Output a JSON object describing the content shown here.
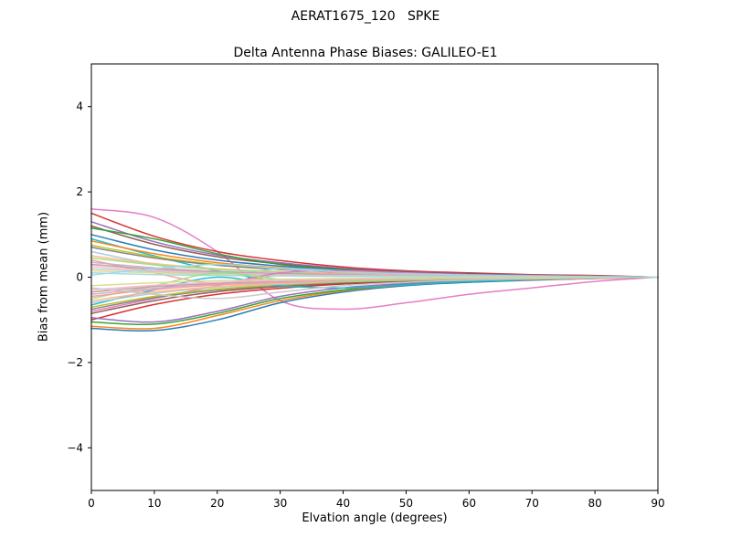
{
  "figure": {
    "suptitle": "AERAT1675_120   SPKE",
    "background": "#ffffff"
  },
  "chart_data": {
    "type": "line",
    "title": "Delta Antenna Phase Biases: GALILEO-E1",
    "xlabel": "Elvation angle (degrees)",
    "ylabel": "Bias from mean (mm)",
    "xlim": [
      0,
      90
    ],
    "ylim": [
      -5,
      5
    ],
    "x_ticks": [
      0,
      10,
      20,
      30,
      40,
      50,
      60,
      70,
      80,
      90
    ],
    "y_ticks": [
      -4,
      -2,
      0,
      2,
      4
    ],
    "grid": false,
    "legend": "none",
    "axis_color": "#000000",
    "x": [
      0,
      10,
      20,
      30,
      40,
      50,
      60,
      70,
      80,
      90
    ],
    "series": [
      {
        "color": "#e377c2",
        "values": [
          1.6,
          1.4,
          0.6,
          -0.55,
          -0.75,
          -0.6,
          -0.4,
          -0.25,
          -0.1,
          0.0
        ]
      },
      {
        "color": "#d62728",
        "values": [
          1.5,
          0.96,
          0.6,
          0.39,
          0.24,
          0.15,
          0.1,
          0.06,
          0.04,
          0.0
        ]
      },
      {
        "color": "#9467bd",
        "values": [
          1.3,
          0.83,
          0.52,
          0.34,
          0.21,
          0.13,
          0.08,
          0.05,
          0.03,
          0.0
        ]
      },
      {
        "color": "#8c564b",
        "values": [
          1.2,
          0.77,
          0.48,
          0.31,
          0.19,
          0.12,
          0.08,
          0.05,
          0.03,
          0.0
        ]
      },
      {
        "color": "#2ca02c",
        "values": [
          1.15,
          0.9,
          0.55,
          0.3,
          0.18,
          0.1,
          0.06,
          0.04,
          0.02,
          0.0
        ]
      },
      {
        "color": "#1f77b4",
        "values": [
          1.0,
          0.64,
          0.4,
          0.26,
          0.16,
          0.1,
          0.07,
          0.04,
          0.02,
          0.0
        ]
      },
      {
        "color": "#17becf",
        "values": [
          0.9,
          0.5,
          0.15,
          -0.1,
          -0.15,
          -0.1,
          -0.06,
          -0.04,
          -0.02,
          0.0
        ]
      },
      {
        "color": "#ff7f0e",
        "values": [
          0.85,
          0.55,
          0.34,
          0.22,
          0.14,
          0.09,
          0.06,
          0.03,
          0.02,
          0.0
        ]
      },
      {
        "color": "#bcbd22",
        "values": [
          0.75,
          0.48,
          0.3,
          0.2,
          0.12,
          0.08,
          0.05,
          0.03,
          0.02,
          0.0
        ]
      },
      {
        "color": "#7f7f7f",
        "values": [
          0.7,
          0.45,
          0.28,
          0.18,
          0.11,
          0.07,
          0.05,
          0.03,
          0.02,
          0.0
        ]
      },
      {
        "color": "#aec7e8",
        "values": [
          0.6,
          0.3,
          0.05,
          0.2,
          0.15,
          0.1,
          0.05,
          0.03,
          0.01,
          0.0
        ]
      },
      {
        "color": "#ffbb78",
        "values": [
          0.5,
          0.32,
          0.2,
          0.13,
          0.08,
          0.05,
          0.03,
          0.02,
          0.01,
          0.0
        ]
      },
      {
        "color": "#98df8a",
        "values": [
          0.45,
          0.29,
          0.18,
          0.12,
          0.07,
          0.05,
          0.03,
          0.02,
          0.01,
          0.0
        ]
      },
      {
        "color": "#ff9896",
        "values": [
          0.4,
          0.1,
          -0.15,
          0.05,
          0.1,
          0.08,
          0.05,
          0.03,
          0.01,
          0.0
        ]
      },
      {
        "color": "#c5b0d5",
        "values": [
          0.35,
          0.22,
          0.14,
          0.09,
          0.06,
          0.04,
          0.02,
          0.01,
          0.01,
          0.0
        ]
      },
      {
        "color": "#c49c94",
        "values": [
          0.3,
          0.19,
          0.12,
          0.08,
          0.05,
          0.03,
          0.02,
          0.01,
          0.01,
          0.0
        ]
      },
      {
        "color": "#f7b6d2",
        "values": [
          0.25,
          0.16,
          0.1,
          0.06,
          0.04,
          0.03,
          0.02,
          0.01,
          0.0,
          0.0
        ]
      },
      {
        "color": "#c7c7c7",
        "values": [
          0.2,
          0.13,
          0.08,
          0.05,
          0.03,
          0.02,
          0.01,
          0.01,
          0.0,
          0.0
        ]
      },
      {
        "color": "#dbdb8d",
        "values": [
          0.15,
          0.1,
          0.06,
          0.04,
          0.02,
          0.02,
          0.01,
          0.01,
          0.0,
          0.0
        ]
      },
      {
        "color": "#9edae5",
        "values": [
          0.1,
          0.06,
          0.04,
          0.03,
          0.02,
          0.01,
          0.01,
          0.0,
          0.0,
          0.0
        ]
      },
      {
        "color": "#1f77b4",
        "values": [
          -1.2,
          -1.25,
          -1.0,
          -0.6,
          -0.35,
          -0.2,
          -0.12,
          -0.07,
          -0.03,
          0.0
        ]
      },
      {
        "color": "#ff7f0e",
        "values": [
          -1.15,
          -1.2,
          -0.9,
          -0.55,
          -0.32,
          -0.18,
          -0.1,
          -0.06,
          -0.03,
          0.0
        ]
      },
      {
        "color": "#2ca02c",
        "values": [
          -1.05,
          -1.1,
          -0.85,
          -0.5,
          -0.3,
          -0.17,
          -0.1,
          -0.05,
          -0.02,
          0.0
        ]
      },
      {
        "color": "#d62728",
        "values": [
          -1.0,
          -0.64,
          -0.4,
          -0.26,
          -0.16,
          -0.1,
          -0.07,
          -0.04,
          -0.02,
          0.0
        ]
      },
      {
        "color": "#9467bd",
        "values": [
          -0.95,
          -1.05,
          -0.8,
          -0.45,
          -0.25,
          -0.15,
          -0.08,
          -0.05,
          -0.02,
          0.0
        ]
      },
      {
        "color": "#8c564b",
        "values": [
          -0.85,
          -0.55,
          -0.34,
          -0.22,
          -0.14,
          -0.08,
          -0.05,
          -0.03,
          -0.02,
          0.0
        ]
      },
      {
        "color": "#e377c2",
        "values": [
          -0.8,
          -0.5,
          -0.2,
          0.1,
          0.15,
          0.1,
          0.06,
          0.04,
          0.02,
          0.0
        ]
      },
      {
        "color": "#7f7f7f",
        "values": [
          -0.75,
          -0.48,
          -0.3,
          -0.2,
          -0.12,
          -0.08,
          -0.05,
          -0.03,
          -0.01,
          0.0
        ]
      },
      {
        "color": "#bcbd22",
        "values": [
          -0.7,
          -0.45,
          -0.28,
          -0.18,
          -0.11,
          -0.07,
          -0.04,
          -0.03,
          -0.01,
          0.0
        ]
      },
      {
        "color": "#17becf",
        "values": [
          -0.65,
          -0.3,
          0.0,
          -0.2,
          -0.25,
          -0.18,
          -0.1,
          -0.05,
          -0.02,
          0.0
        ]
      },
      {
        "color": "#aec7e8",
        "values": [
          -0.6,
          -0.38,
          -0.24,
          -0.16,
          -0.1,
          -0.06,
          -0.04,
          -0.02,
          -0.01,
          0.0
        ]
      },
      {
        "color": "#ffbb78",
        "values": [
          -0.55,
          -0.35,
          -0.22,
          -0.14,
          -0.09,
          -0.05,
          -0.03,
          -0.02,
          -0.01,
          0.0
        ]
      },
      {
        "color": "#98df8a",
        "values": [
          -0.5,
          -0.2,
          0.1,
          -0.05,
          -0.1,
          -0.07,
          -0.04,
          -0.02,
          -0.01,
          0.0
        ]
      },
      {
        "color": "#ff9896",
        "values": [
          -0.45,
          -0.29,
          -0.18,
          -0.12,
          -0.07,
          -0.04,
          -0.03,
          -0.02,
          -0.01,
          0.0
        ]
      },
      {
        "color": "#c5b0d5",
        "values": [
          -0.4,
          -0.26,
          -0.16,
          -0.1,
          -0.06,
          -0.04,
          -0.02,
          -0.01,
          -0.01,
          0.0
        ]
      },
      {
        "color": "#c49c94",
        "values": [
          -0.35,
          -0.22,
          -0.14,
          -0.09,
          -0.05,
          -0.03,
          -0.02,
          -0.01,
          0.0,
          0.0
        ]
      },
      {
        "color": "#f7b6d2",
        "values": [
          -0.3,
          -0.19,
          -0.12,
          -0.08,
          -0.05,
          -0.03,
          -0.02,
          -0.01,
          0.0,
          0.0
        ]
      },
      {
        "color": "#c7c7c7",
        "values": [
          -0.25,
          -0.4,
          -0.5,
          -0.35,
          -0.2,
          -0.12,
          -0.07,
          -0.04,
          -0.02,
          0.0
        ]
      },
      {
        "color": "#dbdb8d",
        "values": [
          -0.2,
          -0.13,
          -0.08,
          -0.05,
          -0.03,
          -0.02,
          -0.01,
          -0.01,
          0.0,
          0.0
        ]
      },
      {
        "color": "#9edae5",
        "values": [
          0.05,
          0.2,
          0.3,
          0.2,
          0.12,
          0.08,
          0.05,
          0.03,
          0.01,
          0.0
        ]
      }
    ]
  }
}
